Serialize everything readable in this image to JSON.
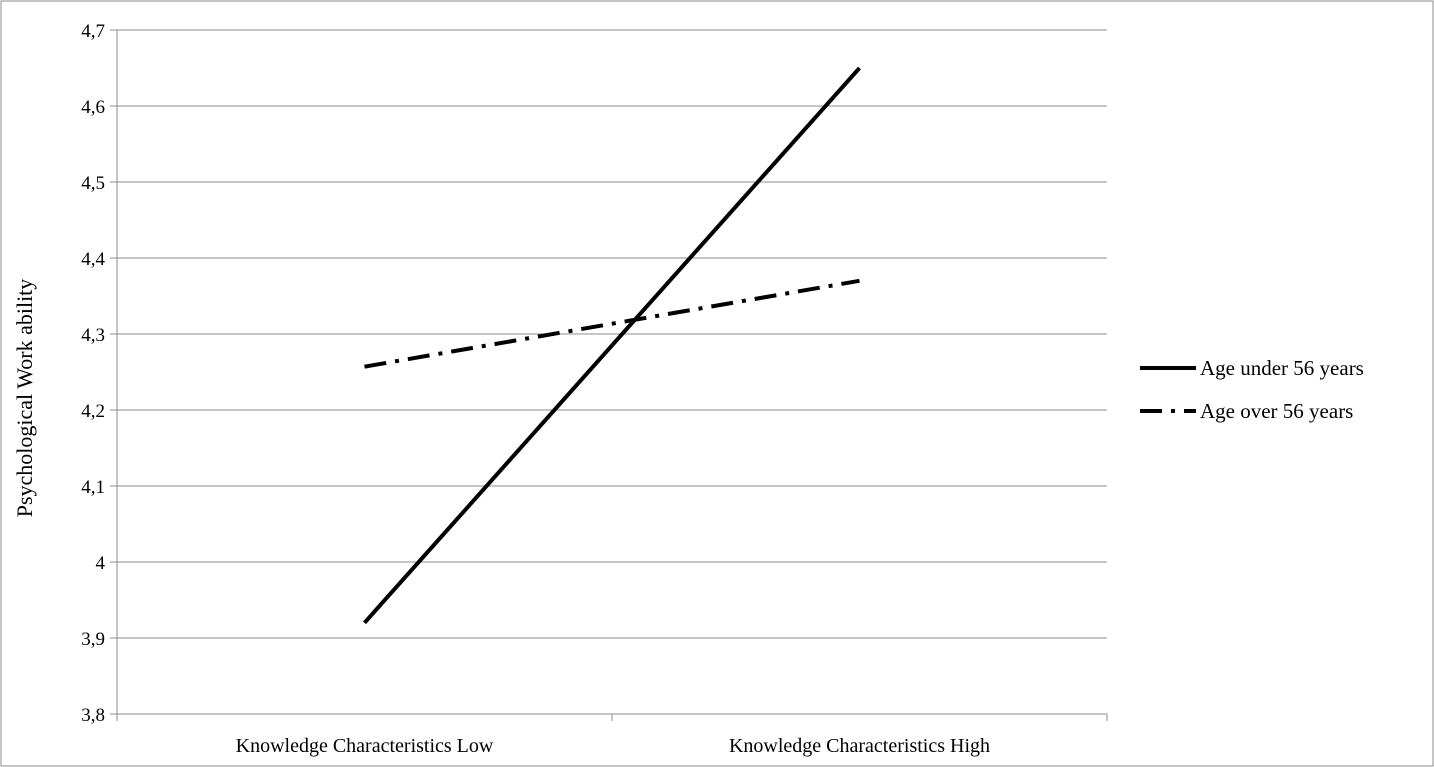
{
  "chart_data": {
    "type": "line",
    "categories": [
      "Knowledge Characteristics Low",
      "Knowledge Characteristics High"
    ],
    "series": [
      {
        "name": "Age under 56 years",
        "values": [
          3.92,
          4.65
        ],
        "style": "solid",
        "color": "#000000"
      },
      {
        "name": "Age over 56 years",
        "values": [
          4.257,
          4.37
        ],
        "style": "dash-dot",
        "color": "#000000"
      }
    ],
    "title": "",
    "xlabel": "",
    "ylabel": "Psychological Work ability",
    "ylim": [
      3.8,
      4.7
    ],
    "yticks": [
      {
        "value": 3.8,
        "label": "3,8"
      },
      {
        "value": 3.9,
        "label": "3,9"
      },
      {
        "value": 4.0,
        "label": "4"
      },
      {
        "value": 4.1,
        "label": "4,1"
      },
      {
        "value": 4.2,
        "label": "4,2"
      },
      {
        "value": 4.3,
        "label": "4,3"
      },
      {
        "value": 4.4,
        "label": "4,4"
      },
      {
        "value": 4.5,
        "label": "4,5"
      },
      {
        "value": 4.6,
        "label": "4,6"
      },
      {
        "value": 4.7,
        "label": "4,7"
      }
    ],
    "grid": true,
    "legend": "right"
  }
}
